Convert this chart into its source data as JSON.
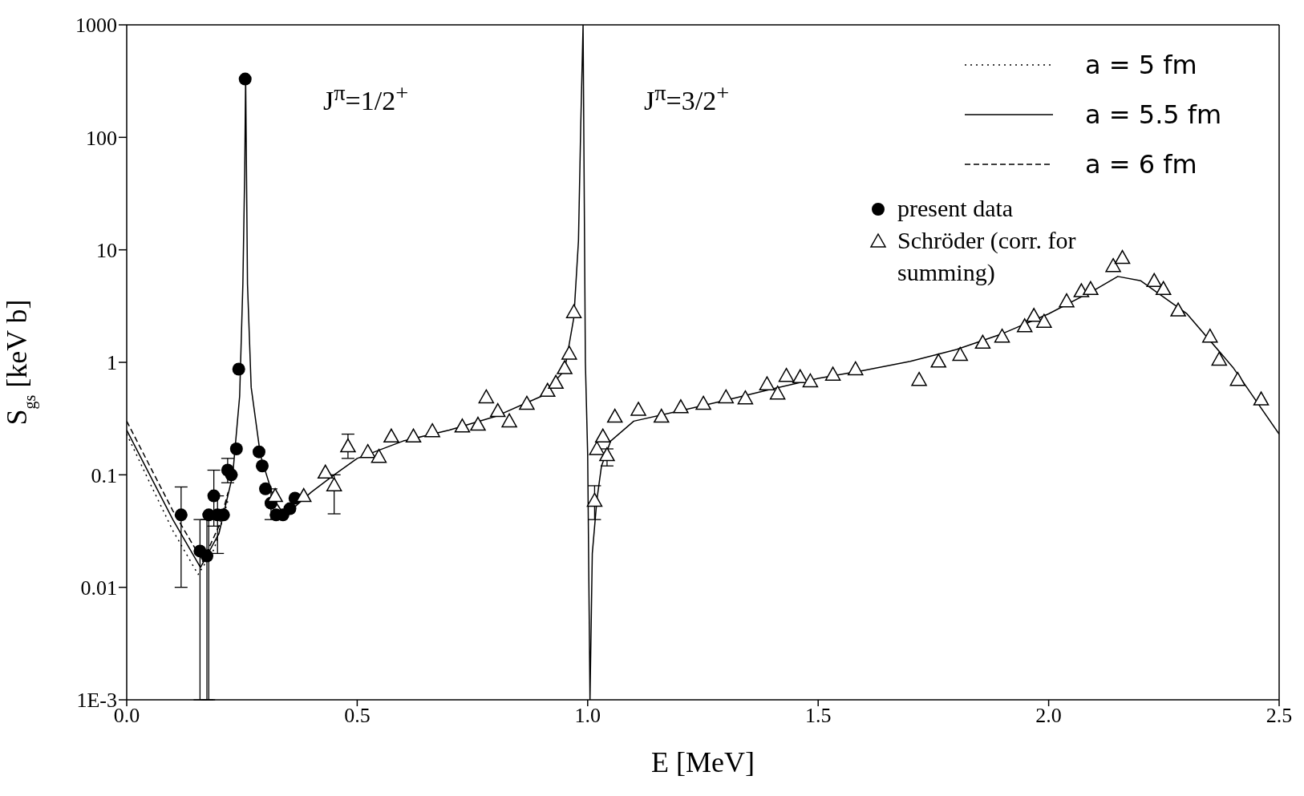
{
  "chart_data": {
    "type": "line",
    "xlabel": "E [MeV]",
    "ylabel": "S$_{gs}$ [keV b]",
    "log": "y",
    "grid": false,
    "legend": "top right",
    "xlim": [
      0,
      2.5
    ],
    "xticks": [
      {
        "value": 0,
        "label": "0.0"
      },
      {
        "value": 0.5,
        "label": "0.5"
      },
      {
        "value": 1,
        "label": "1.0"
      },
      {
        "value": 1.5,
        "label": "1.5"
      },
      {
        "value": 2,
        "label": "2.0"
      },
      {
        "value": 2.5,
        "label": "2.5"
      }
    ],
    "ylim": [
      0.001,
      1000
    ],
    "yticks": [
      {
        "value": 0.001,
        "label": "1E-3"
      },
      0.01,
      0.1,
      1,
      10,
      100,
      1000
    ],
    "annotations": [
      "J$^{π}$=1/2$^{+}$",
      "J$^{π}$=3/2$^{+}$"
    ],
    "series": [
      {
        "name": "a = 5 fm",
        "color": "#000000",
        "line_style": "dotted",
        "marker": "none",
        "x": [
          0,
          0.05,
          0.1,
          0.155,
          0.19,
          0.22
        ],
        "values": [
          0.23,
          0.085,
          0.032,
          0.013,
          0.022,
          0.06
        ]
      },
      {
        "name": "a = 5.5 fm",
        "color": "#000000",
        "line_style": "solid",
        "marker": "none",
        "x": [
          0,
          0.05,
          0.1,
          0.16,
          0.2,
          0.23,
          0.245,
          0.252,
          0.256,
          0.258,
          0.262,
          0.27,
          0.29,
          0.32,
          0.34,
          0.36,
          0.4,
          0.45,
          0.5,
          0.6,
          0.7,
          0.8,
          0.9,
          0.95,
          0.97,
          0.98,
          0.985,
          0.99,
          0.995,
          1.0,
          1.005,
          1.01,
          1.02,
          1.03,
          1.05,
          1.1,
          1.2,
          1.3,
          1.4,
          1.5,
          1.6,
          1.7,
          1.8,
          1.9,
          2.0,
          2.1,
          2.15,
          2.2,
          2.3,
          2.4,
          2.5
        ],
        "values": [
          0.25,
          0.1,
          0.04,
          0.015,
          0.03,
          0.1,
          0.5,
          5,
          50,
          350,
          5,
          0.6,
          0.15,
          0.06,
          0.045,
          0.05,
          0.07,
          0.1,
          0.14,
          0.2,
          0.25,
          0.33,
          0.5,
          0.85,
          2.5,
          12,
          130,
          1000,
          1,
          0.15,
          0.001,
          0.02,
          0.06,
          0.12,
          0.2,
          0.3,
          0.37,
          0.46,
          0.58,
          0.72,
          0.85,
          1.02,
          1.3,
          1.8,
          2.7,
          4.4,
          5.8,
          5.3,
          2.7,
          0.9,
          0.23
        ]
      },
      {
        "name": "a = 6 fm",
        "color": "#000000",
        "line_style": "dashed",
        "marker": "none",
        "x": [
          0,
          0.05,
          0.1,
          0.165,
          0.2,
          0.22
        ],
        "values": [
          0.3,
          0.12,
          0.048,
          0.017,
          0.035,
          0.07
        ]
      },
      {
        "name": "present data",
        "type": "scatter",
        "color": "#000000",
        "marker": "circle",
        "x": [
          0.118,
          0.159,
          0.174,
          0.178,
          0.189,
          0.197,
          0.21,
          0.219,
          0.227,
          0.238,
          0.243,
          0.257,
          0.287,
          0.294,
          0.301,
          0.313,
          0.324,
          0.339,
          0.354,
          0.365
        ],
        "values": [
          0.044,
          0.021,
          0.019,
          0.044,
          0.065,
          0.044,
          0.044,
          0.11,
          0.1,
          0.17,
          0.87,
          330,
          0.16,
          0.12,
          0.075,
          0.056,
          0.044,
          0.044,
          0.05,
          0.062
        ],
        "errors": [
          [
            0.01,
            0.078
          ],
          [
            0.001,
            0.04
          ],
          [
            0.001,
            0.04
          ],
          [
            0.001,
            0.045
          ],
          [
            0.035,
            0.11
          ],
          [
            0.02,
            0.065
          ],
          null,
          [
            0.085,
            0.14
          ],
          null,
          null,
          null,
          null,
          null,
          null,
          null,
          [
            0.04,
            0.075
          ],
          null,
          null,
          null,
          null
        ]
      },
      {
        "name": "Schröder (corr. for summing)",
        "type": "scatter",
        "color": "#000000",
        "marker": "triangle",
        "x": [
          0.322,
          0.384,
          0.431,
          0.45,
          0.48,
          0.523,
          0.547,
          0.574,
          0.622,
          0.663,
          0.728,
          0.762,
          0.78,
          0.805,
          0.83,
          0.868,
          0.913,
          0.931,
          0.95,
          0.96,
          0.97,
          1.015,
          1.02,
          1.033,
          1.042,
          1.059,
          1.11,
          1.16,
          1.202,
          1.251,
          1.3,
          1.342,
          1.389,
          1.412,
          1.431,
          1.461,
          1.483,
          1.532,
          1.581,
          1.719,
          1.761,
          1.808,
          1.857,
          1.899,
          1.948,
          1.968,
          1.99,
          2.039,
          2.071,
          2.091,
          2.14,
          2.16,
          2.229,
          2.249,
          2.281,
          2.35,
          2.37,
          2.41,
          2.461
        ],
        "values": [
          0.065,
          0.065,
          0.105,
          0.081,
          0.18,
          0.16,
          0.145,
          0.22,
          0.22,
          0.245,
          0.27,
          0.28,
          0.49,
          0.37,
          0.3,
          0.43,
          0.56,
          0.66,
          0.89,
          1.2,
          2.8,
          0.059,
          0.17,
          0.22,
          0.15,
          0.33,
          0.38,
          0.33,
          0.4,
          0.43,
          0.49,
          0.48,
          0.64,
          0.53,
          0.76,
          0.74,
          0.68,
          0.78,
          0.87,
          0.7,
          1.02,
          1.17,
          1.5,
          1.7,
          2.1,
          2.6,
          2.3,
          3.5,
          4.3,
          4.5,
          7.2,
          8.5,
          5.3,
          4.5,
          2.9,
          1.7,
          1.06,
          0.7,
          0.47
        ],
        "errors": [
          null,
          null,
          null,
          [
            0.045,
            0.1
          ],
          [
            0.14,
            0.23
          ],
          null,
          null,
          null,
          null,
          null,
          null,
          null,
          null,
          null,
          null,
          null,
          null,
          null,
          null,
          null,
          null,
          [
            0.04,
            0.08
          ],
          null,
          null,
          [
            0.12,
            0.17
          ],
          null,
          null,
          null,
          null,
          null,
          null,
          null,
          null,
          null,
          null,
          null,
          null,
          null,
          null,
          null,
          null,
          null,
          null,
          null,
          null,
          null,
          null,
          null,
          null,
          null,
          null,
          null,
          null,
          null,
          null,
          null,
          null,
          null,
          null
        ]
      }
    ]
  }
}
